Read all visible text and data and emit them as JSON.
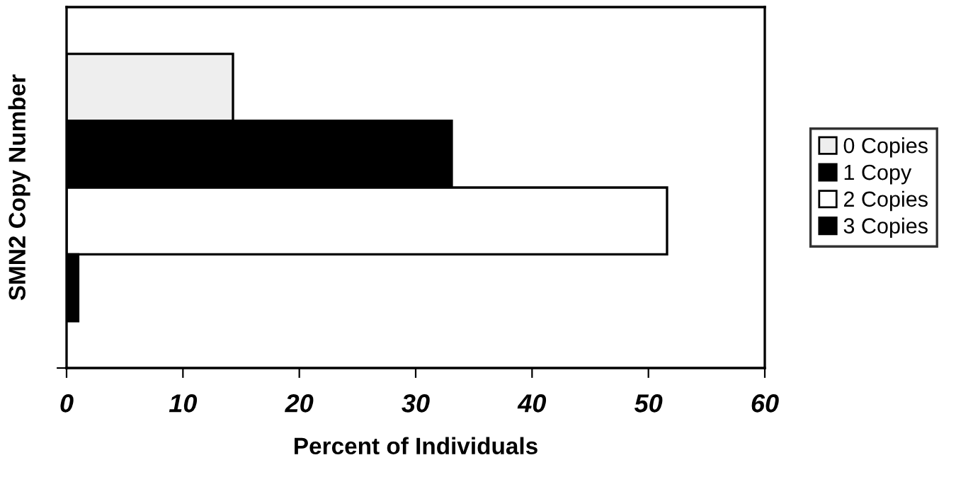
{
  "chart_data": {
    "type": "bar",
    "orientation": "horizontal",
    "xlabel": "Percent of Individuals",
    "ylabel": "SMN2 Copy Number",
    "categories": [
      null
    ],
    "series": [
      {
        "name": "0 Copies",
        "color": "#eeeeee",
        "values": [
          14.3
        ]
      },
      {
        "name": "1 Copy",
        "color": "#000000",
        "values": [
          33.1
        ]
      },
      {
        "name": "2 Copies",
        "color": "#ffffff",
        "values": [
          51.6
        ]
      },
      {
        "name": "3 Copies",
        "color": "#000000",
        "values": [
          1.0
        ]
      }
    ],
    "xlim": [
      0,
      60
    ],
    "xticks": [
      0,
      10,
      20,
      30,
      40,
      50,
      60
    ],
    "grid": false,
    "legend": "right"
  }
}
